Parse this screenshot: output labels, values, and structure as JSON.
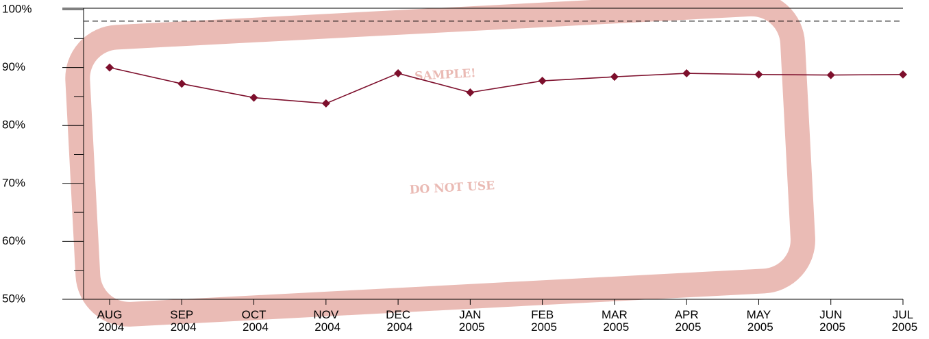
{
  "chart_data": {
    "type": "line",
    "watermark": [
      "SAMPLE!",
      "DO NOT USE"
    ],
    "categories": [
      "AUG 2004",
      "SEP 2004",
      "OCT 2004",
      "NOV 2004",
      "DEC 2004",
      "JAN 2005",
      "FEB 2005",
      "MAR 2005",
      "APR 2005",
      "MAY 2005",
      "JUN 2005",
      "JUL 2005"
    ],
    "series": [
      {
        "color": "#7d0f2c",
        "values": [
          90,
          87.2,
          84.8,
          83.8,
          89,
          85.7,
          87.7,
          88.4,
          89,
          88.8,
          88.7,
          88.8
        ]
      }
    ],
    "target": 98,
    "ylim": [
      50,
      100
    ],
    "yticks": [
      {
        "value": 50,
        "label": "50%"
      },
      {
        "value": 60,
        "label": "60%"
      },
      {
        "value": 70,
        "label": "70%"
      },
      {
        "value": 80,
        "label": "80%"
      },
      {
        "value": 90,
        "label": "90%"
      },
      {
        "value": 100,
        "label": "100%"
      }
    ],
    "minor_yticks": [
      55,
      65,
      75,
      85,
      95
    ]
  }
}
